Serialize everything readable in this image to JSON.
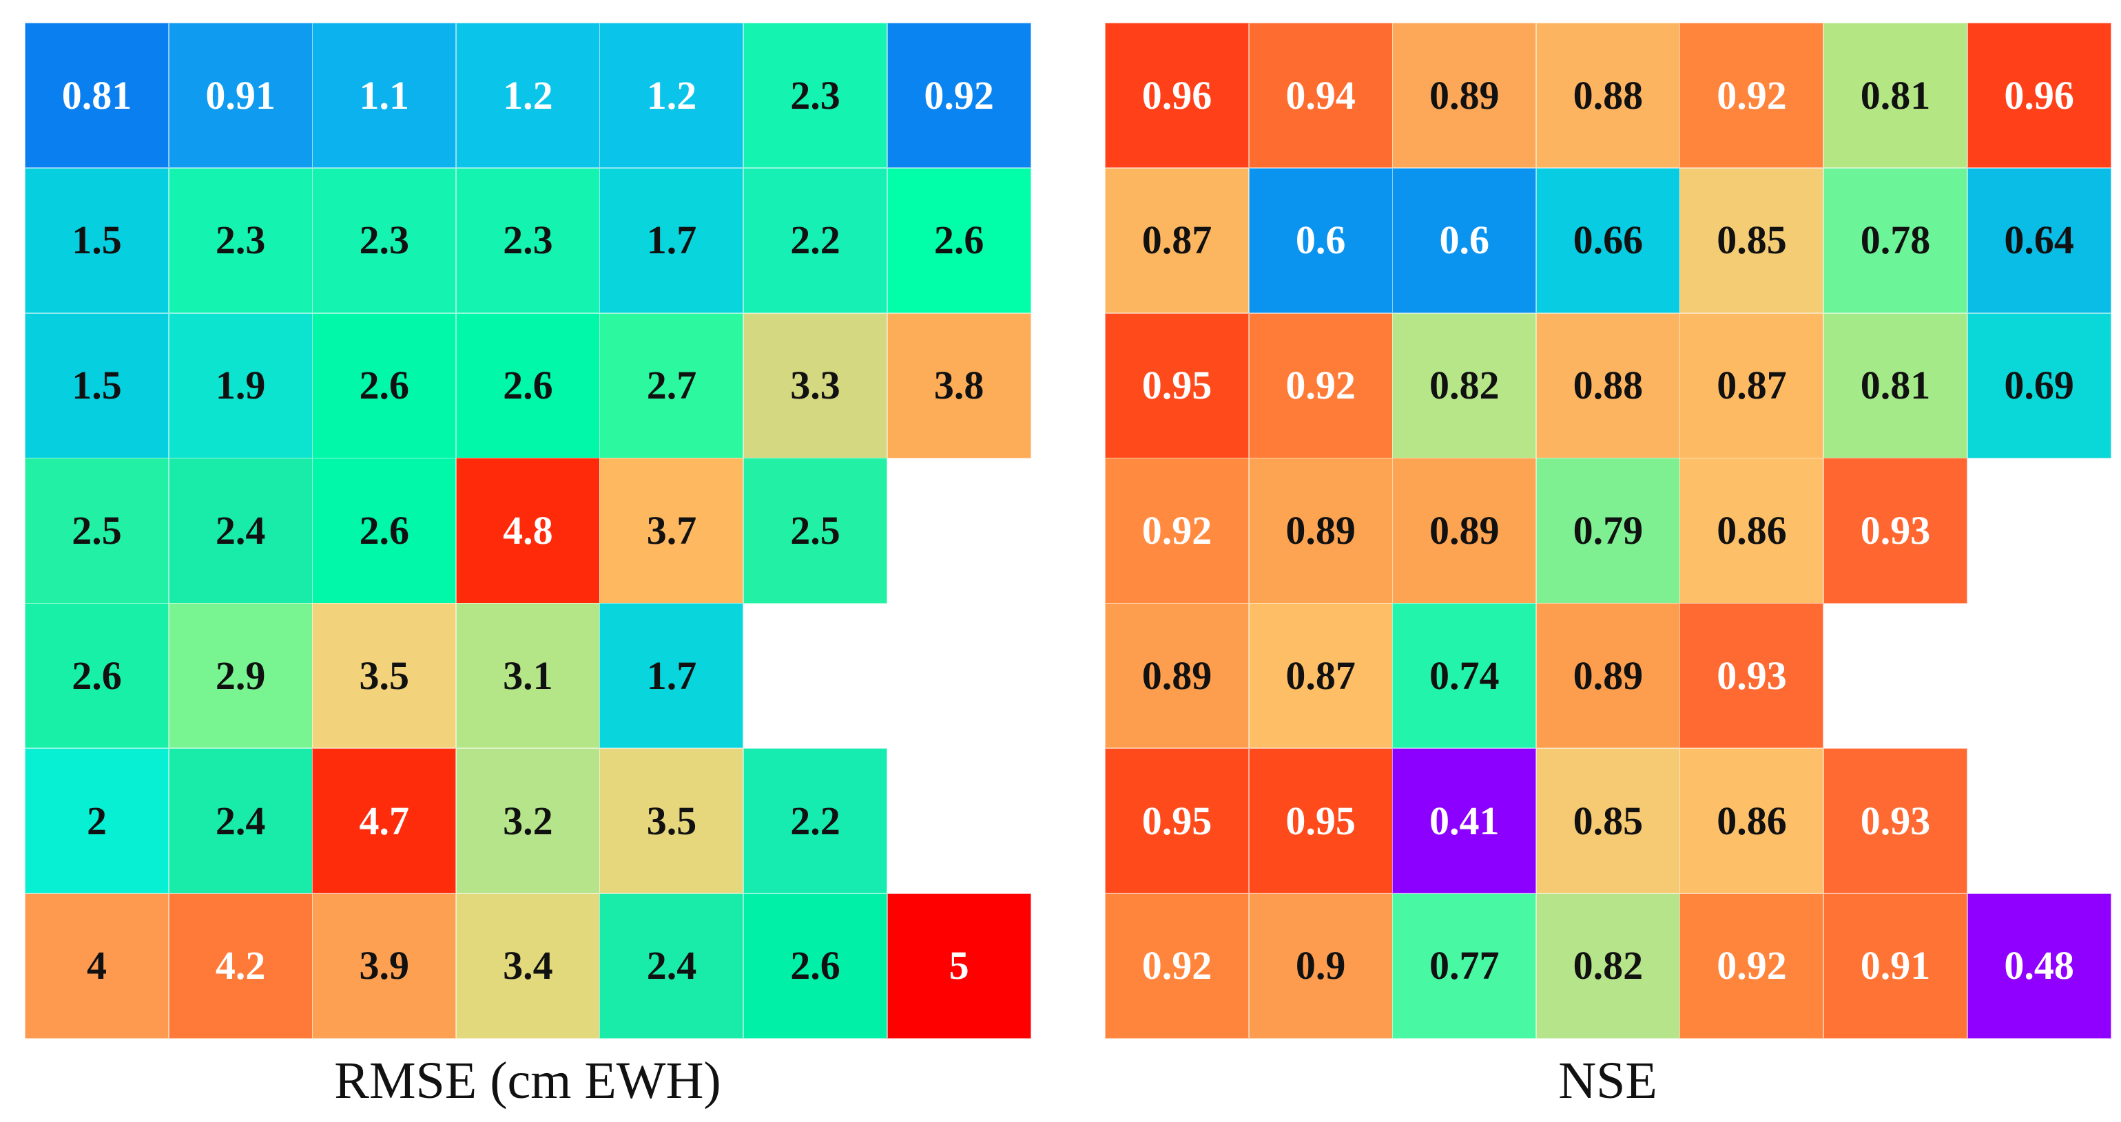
{
  "chart_data": [
    {
      "type": "heatmap",
      "title": "RMSE (cm EWH)",
      "rows": 7,
      "cols": 7,
      "values": [
        [
          0.81,
          0.91,
          1.1,
          1.2,
          1.2,
          2.3,
          0.92
        ],
        [
          1.5,
          2.3,
          2.3,
          2.3,
          1.7,
          2.2,
          2.6
        ],
        [
          1.5,
          1.9,
          2.6,
          2.6,
          2.7,
          3.3,
          3.8
        ],
        [
          2.5,
          2.4,
          2.6,
          4.8,
          3.7,
          2.5,
          null
        ],
        [
          2.6,
          2.9,
          3.5,
          3.1,
          1.7,
          null,
          null
        ],
        [
          2,
          2.4,
          4.7,
          3.2,
          3.5,
          2.2,
          null
        ],
        [
          4,
          4.2,
          3.9,
          3.4,
          2.4,
          2.6,
          5
        ]
      ],
      "labels": [
        [
          "0.81",
          "0.91",
          "1.1",
          "1.2",
          "1.2",
          "2.3",
          "0.92"
        ],
        [
          "1.5",
          "2.3",
          "2.3",
          "2.3",
          "1.7",
          "2.2",
          "2.6"
        ],
        [
          "1.5",
          "1.9",
          "2.6",
          "2.6",
          "2.7",
          "3.3",
          "3.8"
        ],
        [
          "2.5",
          "2.4",
          "2.6",
          "4.8",
          "3.7",
          "2.5",
          null
        ],
        [
          "2.6",
          "2.9",
          "3.5",
          "3.1",
          "1.7",
          null,
          null
        ],
        [
          "2",
          "2.4",
          "4.7",
          "3.2",
          "3.5",
          "2.2",
          null
        ],
        [
          "4",
          "4.2",
          "3.9",
          "3.4",
          "2.4",
          "2.6",
          "5"
        ]
      ],
      "colors": [
        [
          "#0a7ff0",
          "#0f9cf0",
          "#0cb2ee",
          "#0bc4ea",
          "#0bc4ea",
          "#14f4b0",
          "#0a84f0"
        ],
        [
          "#06cfe0",
          "#14f4b0",
          "#14f4b0",
          "#14f4b0",
          "#08d6dc",
          "#16f0b4",
          "#00ffa8"
        ],
        [
          "#06cfe0",
          "#0ce4d0",
          "#00f8a8",
          "#00f8a8",
          "#2cf8a0",
          "#d4d880",
          "#fdac58"
        ],
        [
          "#22f0a4",
          "#18eca8",
          "#00f8a8",
          "#ff2a0a",
          "#fdb860",
          "#22f0a4",
          null
        ],
        [
          "#18f0a8",
          "#78f490",
          "#f2d27a",
          "#b4e688",
          "#08d6dc",
          null,
          null
        ],
        [
          "#08f0d4",
          "#18eca8",
          "#ff2c0c",
          "#b6e48a",
          "#e6d67c",
          "#16ecb0",
          null
        ],
        [
          "#fd9a50",
          "#ff7a38",
          "#fda052",
          "#e2d87c",
          "#18eca8",
          "#00f0a8",
          "#ff0000"
        ]
      ],
      "text_colors": [
        [
          "#ffffff",
          "#ffffff",
          "#ffffff",
          "#ffffff",
          "#ffffff",
          "#111111",
          "#ffffff"
        ],
        [
          "#111111",
          "#111111",
          "#111111",
          "#111111",
          "#111111",
          "#111111",
          "#111111"
        ],
        [
          "#111111",
          "#111111",
          "#111111",
          "#111111",
          "#111111",
          "#111111",
          "#111111"
        ],
        [
          "#111111",
          "#111111",
          "#111111",
          "#ffffff",
          "#111111",
          "#111111",
          null
        ],
        [
          "#111111",
          "#111111",
          "#111111",
          "#111111",
          "#111111",
          null,
          null
        ],
        [
          "#111111",
          "#111111",
          "#ffffff",
          "#111111",
          "#111111",
          "#111111",
          null
        ],
        [
          "#111111",
          "#ffffff",
          "#111111",
          "#111111",
          "#111111",
          "#111111",
          "#ffffff"
        ]
      ]
    },
    {
      "type": "heatmap",
      "title": "NSE",
      "rows": 7,
      "cols": 7,
      "values": [
        [
          0.96,
          0.94,
          0.89,
          0.88,
          0.92,
          0.81,
          0.96
        ],
        [
          0.87,
          0.6,
          0.6,
          0.66,
          0.85,
          0.78,
          0.64
        ],
        [
          0.95,
          0.92,
          0.82,
          0.88,
          0.87,
          0.81,
          0.69
        ],
        [
          0.92,
          0.89,
          0.89,
          0.79,
          0.86,
          0.93,
          null
        ],
        [
          0.89,
          0.87,
          0.74,
          0.89,
          0.93,
          null,
          null
        ],
        [
          0.95,
          0.95,
          0.41,
          0.85,
          0.86,
          0.93,
          null
        ],
        [
          0.92,
          0.9,
          0.77,
          0.82,
          0.92,
          0.91,
          0.48
        ]
      ],
      "labels": [
        [
          "0.96",
          "0.94",
          "0.89",
          "0.88",
          "0.92",
          "0.81",
          "0.96"
        ],
        [
          "0.87",
          "0.6",
          "0.6",
          "0.66",
          "0.85",
          "0.78",
          "0.64"
        ],
        [
          "0.95",
          "0.92",
          "0.82",
          "0.88",
          "0.87",
          "0.81",
          "0.69"
        ],
        [
          "0.92",
          "0.89",
          "0.89",
          "0.79",
          "0.86",
          "0.93",
          null
        ],
        [
          "0.89",
          "0.87",
          "0.74",
          "0.89",
          "0.93",
          null,
          null
        ],
        [
          "0.95",
          "0.95",
          "0.41",
          "0.85",
          "0.86",
          "0.93",
          null
        ],
        [
          "0.92",
          "0.9",
          "0.77",
          "0.82",
          "0.92",
          "0.91",
          "0.48"
        ]
      ],
      "colors": [
        [
          "#ff4018",
          "#ff6c30",
          "#fda858",
          "#fdb460",
          "#ff843c",
          "#b4e684",
          "#ff4018"
        ],
        [
          "#fdb660",
          "#0a94f0",
          "#0a94f0",
          "#08cce2",
          "#f4cc74",
          "#6cf498",
          "#0abde6"
        ],
        [
          "#ff4a1c",
          "#ff7c38",
          "#b6e688",
          "#fdb460",
          "#fdba62",
          "#a4ea88",
          "#0ad8d8"
        ],
        [
          "#ff8a40",
          "#fda452",
          "#fda452",
          "#7ef092",
          "#fdc068",
          "#ff6630",
          null
        ],
        [
          "#fd9e4e",
          "#fdbe66",
          "#22f4ac",
          "#fd9e4e",
          "#ff6a32",
          null,
          null
        ],
        [
          "#ff4a1c",
          "#ff4a1c",
          "#8c00ff",
          "#f6ca72",
          "#fdc068",
          "#ff6a32",
          null
        ],
        [
          "#ff843c",
          "#fd9c4e",
          "#48f8a2",
          "#b6e48a",
          "#ff843c",
          "#ff7434",
          "#9000ff"
        ]
      ],
      "text_colors": [
        [
          "#ffffff",
          "#ffffff",
          "#111111",
          "#111111",
          "#ffffff",
          "#111111",
          "#ffffff"
        ],
        [
          "#111111",
          "#ffffff",
          "#ffffff",
          "#111111",
          "#111111",
          "#111111",
          "#111111"
        ],
        [
          "#ffffff",
          "#ffffff",
          "#111111",
          "#111111",
          "#111111",
          "#111111",
          "#111111"
        ],
        [
          "#ffffff",
          "#111111",
          "#111111",
          "#111111",
          "#111111",
          "#ffffff",
          null
        ],
        [
          "#111111",
          "#111111",
          "#111111",
          "#111111",
          "#ffffff",
          null,
          null
        ],
        [
          "#ffffff",
          "#ffffff",
          "#ffffff",
          "#111111",
          "#111111",
          "#ffffff",
          null
        ],
        [
          "#ffffff",
          "#111111",
          "#111111",
          "#111111",
          "#ffffff",
          "#ffffff",
          "#ffffff"
        ]
      ]
    }
  ]
}
